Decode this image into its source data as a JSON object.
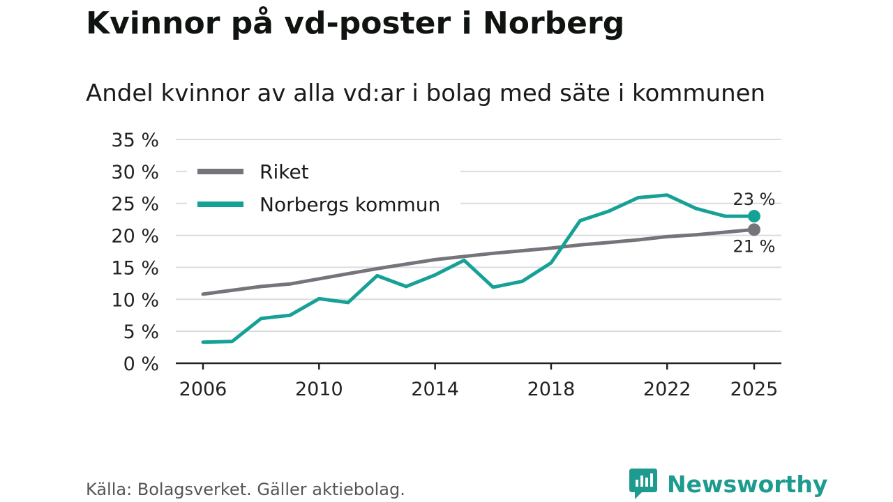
{
  "chart_data": {
    "type": "line",
    "title": "Kvinnor på vd-poster i Norberg",
    "subtitle": "Andel kvinnor av alla vd:ar i bolag med säte i kommunen",
    "x": [
      2006,
      2007,
      2008,
      2009,
      2010,
      2011,
      2012,
      2013,
      2014,
      2015,
      2016,
      2017,
      2018,
      2019,
      2020,
      2021,
      2022,
      2023,
      2024,
      2025
    ],
    "series": [
      {
        "name": "Riket",
        "color": "#76747b",
        "values": [
          10.8,
          11.4,
          12.0,
          12.4,
          13.2,
          14.0,
          14.8,
          15.5,
          16.2,
          16.7,
          17.2,
          17.6,
          18.0,
          18.5,
          18.9,
          19.3,
          19.8,
          20.1,
          20.5,
          20.9
        ],
        "end_label": "21 %"
      },
      {
        "name": "Norbergs kommun",
        "color": "#16a197",
        "values": [
          3.3,
          3.4,
          7.0,
          7.5,
          10.1,
          9.5,
          13.7,
          12.0,
          13.8,
          16.1,
          11.9,
          12.8,
          15.7,
          22.3,
          23.8,
          25.9,
          26.3,
          24.2,
          23.0,
          23.0
        ],
        "end_label": "23 %"
      }
    ],
    "x_ticks": [
      2006,
      2010,
      2014,
      2018,
      2022,
      2025
    ],
    "x_tick_labels": [
      "2006",
      "2010",
      "2014",
      "2018",
      "2022",
      "2025"
    ],
    "y_ticks": [
      0,
      5,
      10,
      15,
      20,
      25,
      30,
      35
    ],
    "y_tick_labels": [
      "0 %",
      "5 %",
      "10 %",
      "15 %",
      "20 %",
      "25 %",
      "30 %",
      "35 %"
    ],
    "ylim": [
      0,
      35
    ],
    "xlim": [
      2006,
      2025
    ],
    "xlabel": "",
    "ylabel": "",
    "grid": true,
    "legend": "top-left"
  },
  "footer": {
    "source": "Källa: Bolagsverket. Gäller aktiebolag.",
    "brand": "Newsworthy"
  },
  "colors": {
    "grid": "#dcdcdc",
    "axis": "#222222",
    "brand": "#1e9b8f"
  },
  "icons": {
    "brand_logo": "newsworthy-logo-icon"
  }
}
